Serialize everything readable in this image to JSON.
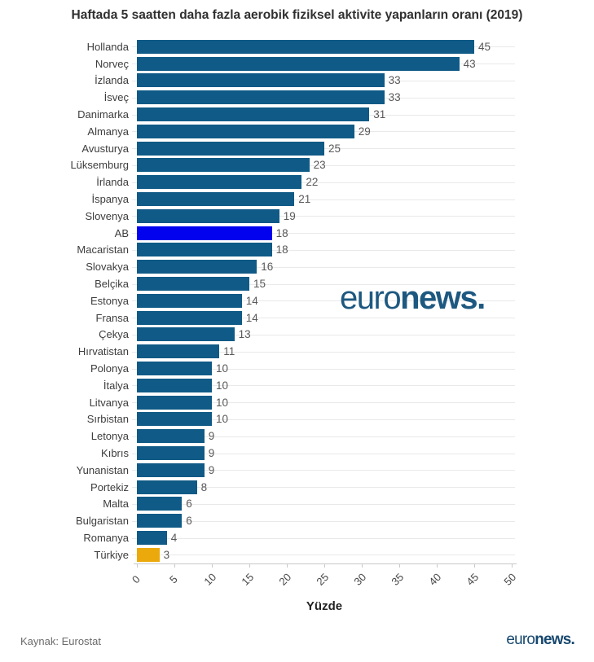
{
  "title": "Haftada 5 saatten daha fazla aerobik fiziksel aktivite yapanların oranı (2019)",
  "chart_data": {
    "type": "bar",
    "orientation": "horizontal",
    "title": "Haftada 5 saatten daha fazla aerobik fiziksel aktivite yapanların oranı (2019)",
    "xlabel": "Yüzde",
    "ylabel": "",
    "xlim": [
      0,
      50
    ],
    "xticks": [
      0,
      5,
      10,
      15,
      20,
      25,
      30,
      35,
      40,
      45,
      50
    ],
    "grid": true,
    "categories": [
      "Hollanda",
      "Norveç",
      "İzlanda",
      "İsveç",
      "Danimarka",
      "Almanya",
      "Avusturya",
      "Lüksemburg",
      "İrlanda",
      "İspanya",
      "Slovenya",
      "AB",
      "Macaristan",
      "Slovakya",
      "Belçika",
      "Estonya",
      "Fransa",
      "Çekya",
      "Hırvatistan",
      "Polonya",
      "İtalya",
      "Litvanya",
      "Sırbistan",
      "Letonya",
      "Kıbrıs",
      "Yunanistan",
      "Portekiz",
      "Malta",
      "Bulgaristan",
      "Romanya",
      "Türkiye"
    ],
    "values": [
      45,
      43,
      33,
      33,
      31,
      29,
      25,
      23,
      22,
      21,
      19,
      18,
      18,
      16,
      15,
      14,
      14,
      13,
      11,
      10,
      10,
      10,
      10,
      9,
      9,
      9,
      8,
      6,
      6,
      4,
      3
    ],
    "bar_color": "#0f5a86",
    "highlights": {
      "AB": "#0202ee",
      "Türkiye": "#eca90c"
    },
    "value_label_color": "#595959"
  },
  "watermark": {
    "light": "euro",
    "bold": "news."
  },
  "footer": {
    "source": "Kaynak: Eurostat",
    "logo_light": "euro",
    "logo_bold": "news."
  },
  "colors": {
    "bar": "#0f5a86",
    "eu_highlight": "#0202ee",
    "turkey_highlight": "#eca90c",
    "logo_blue": "#1d5880",
    "gridline": "#e9e9e9",
    "axis": "#c9c9c9"
  }
}
